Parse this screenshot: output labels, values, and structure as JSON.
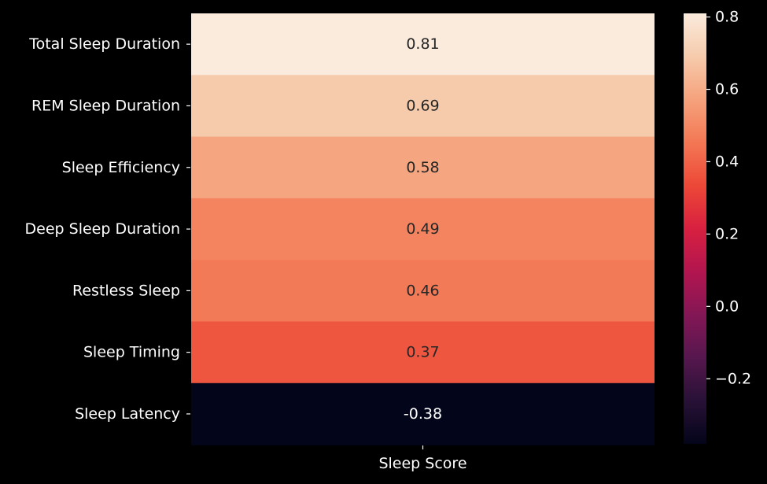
{
  "chart_data": {
    "type": "heatmap",
    "title": "",
    "xlabel": "",
    "ylabel": "",
    "x_categories": [
      "Sleep Score"
    ],
    "y_categories": [
      "Total Sleep Duration",
      "REM Sleep Duration",
      "Sleep Efficiency",
      "Deep Sleep Duration",
      "Restless Sleep",
      "Sleep Timing",
      "Sleep Latency"
    ],
    "values": [
      0.81,
      0.69,
      0.58,
      0.49,
      0.46,
      0.37,
      -0.38
    ],
    "cell_labels": [
      "0.81",
      "0.69",
      "0.58",
      "0.49",
      "0.46",
      "0.37",
      "-0.38"
    ],
    "colorbar": {
      "colormap": "rocket",
      "range": [
        -0.38,
        0.81
      ],
      "ticks": [
        0.8,
        0.6,
        0.4,
        0.2,
        0.0,
        -0.2
      ],
      "tick_labels": [
        "0.8",
        "0.6",
        "0.4",
        "0.2",
        "0.0",
        "−0.2"
      ]
    },
    "colors": {
      "background": "#000000",
      "text": "#ffffff",
      "annotation_light": "#ffffff",
      "annotation_dark": "#262626"
    }
  }
}
